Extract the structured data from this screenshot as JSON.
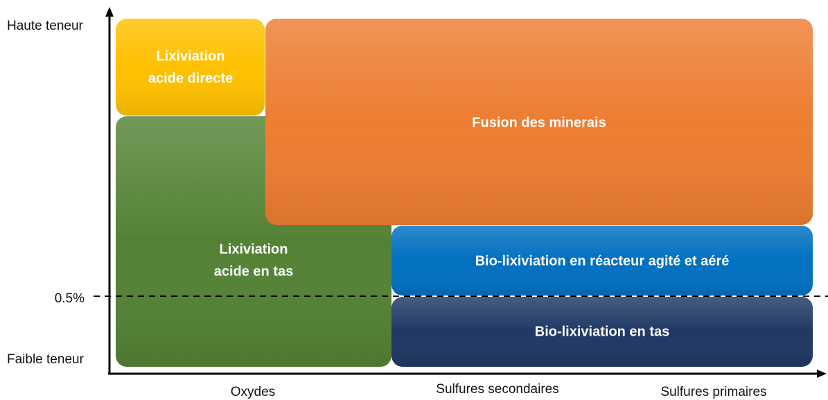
{
  "y_axis": {
    "high": "Haute teneur",
    "threshold": "0.5%",
    "low": "Faible teneur"
  },
  "x_axis": [
    "Oxydes",
    "Sulfures secondaires",
    "Sulfures primaires"
  ],
  "nodes": [
    {
      "label": [
        "Lixiviation",
        "acide directe"
      ]
    },
    {
      "label": [
        "Lixiviation",
        "acide en tas"
      ]
    },
    {
      "label": [
        "Fusion des minerais"
      ]
    },
    {
      "label": [
        "Bio-lixiviation en réacteur agité et aéré"
      ]
    },
    {
      "label": [
        "Bio-lixiviation en tas"
      ]
    }
  ]
}
